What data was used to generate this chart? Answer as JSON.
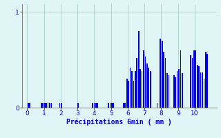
{
  "xlabel": "Précipitations 6min ( mm )",
  "bar_color": "#0000dd",
  "bg_color": "#e0f5f5",
  "grid_color": "#aacaca",
  "text_color": "#0000cc",
  "tick_color": "#555555",
  "xlim": [
    -0.3,
    11.3
  ],
  "ylim": [
    0,
    1.08
  ],
  "yticks": [
    0,
    1
  ],
  "xticks": [
    0,
    1,
    2,
    3,
    4,
    5,
    6,
    7,
    8,
    9,
    10
  ],
  "bar_positions": [
    0.08,
    0.14,
    0.85,
    0.95,
    1.05,
    1.15,
    1.25,
    1.35,
    1.45,
    1.95,
    2.05,
    3.05,
    3.9,
    4.0,
    4.1,
    4.2,
    4.85,
    4.95,
    5.05,
    5.15,
    5.75,
    5.85,
    5.95,
    6.05,
    6.15,
    6.25,
    6.35,
    6.45,
    6.55,
    6.65,
    6.75,
    6.85,
    6.95,
    7.05,
    7.15,
    7.25,
    7.35,
    7.75,
    7.95,
    8.05,
    8.15,
    8.25,
    8.35,
    8.45,
    8.75,
    8.85,
    8.95,
    9.05,
    9.15,
    9.25,
    9.75,
    9.85,
    9.95,
    10.05,
    10.15,
    10.25,
    10.35,
    10.45,
    10.55,
    10.65,
    10.75
  ],
  "bar_heights": [
    0.05,
    0.05,
    0.05,
    0.05,
    0.05,
    0.05,
    0.05,
    0.05,
    0.05,
    0.05,
    0.05,
    0.05,
    0.05,
    0.05,
    0.05,
    0.05,
    0.05,
    0.05,
    0.05,
    0.05,
    0.05,
    0.05,
    0.3,
    0.28,
    0.42,
    0.38,
    0.28,
    0.38,
    0.52,
    0.8,
    0.4,
    0.38,
    0.6,
    0.53,
    0.46,
    0.42,
    0.38,
    0.05,
    0.72,
    0.7,
    0.58,
    0.52,
    0.36,
    0.34,
    0.34,
    0.32,
    0.38,
    0.4,
    0.6,
    0.36,
    0.55,
    0.52,
    0.6,
    0.6,
    0.45,
    0.43,
    0.37,
    0.37,
    0.3,
    0.58,
    0.56
  ],
  "bar_width": 0.07
}
